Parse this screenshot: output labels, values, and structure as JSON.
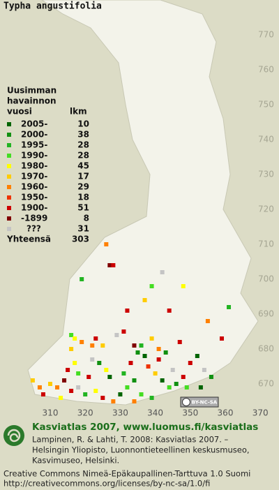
{
  "map": {
    "title": "Typha angustifolia",
    "northing_ticks": [
      670,
      680,
      690,
      700,
      710,
      720,
      730,
      740,
      750,
      760,
      770
    ],
    "easting_ticks": [
      310,
      320,
      330,
      340,
      350,
      360,
      370
    ],
    "legend": {
      "heading": [
        "Uusimman",
        "havainnon",
        "vuosi"
      ],
      "count_heading": "lkm",
      "rows": [
        {
          "label": "2005-",
          "count": 10,
          "color": "#006400"
        },
        {
          "label": "2000-",
          "count": 38,
          "color": "#119011"
        },
        {
          "label": "1995-",
          "count": 28,
          "color": "#22b422"
        },
        {
          "label": "1990-",
          "count": 28,
          "color": "#44dd22"
        },
        {
          "label": "1980-",
          "count": 45,
          "color": "#ffff00"
        },
        {
          "label": "1970-",
          "count": 17,
          "color": "#ffcc00"
        },
        {
          "label": "1960-",
          "count": 29,
          "color": "#ff8000"
        },
        {
          "label": "1950-",
          "count": 18,
          "color": "#ee3300"
        },
        {
          "label": "1900-",
          "count": 51,
          "color": "#cc0000"
        },
        {
          "label": "-1899",
          "count": 8,
          "color": "#800000"
        },
        {
          "label": "???",
          "count": 31,
          "color": "#c4c4c4"
        }
      ],
      "total_label": "Yhteensä",
      "total": 303
    },
    "dots": [
      {
        "e": 326,
        "n": 710,
        "c": 6
      },
      {
        "e": 327,
        "n": 704,
        "c": 9
      },
      {
        "e": 328,
        "n": 704,
        "c": 8
      },
      {
        "e": 319,
        "n": 700,
        "c": 2
      },
      {
        "e": 339,
        "n": 698,
        "c": 3
      },
      {
        "e": 348,
        "n": 698,
        "c": 4
      },
      {
        "e": 342,
        "n": 702,
        "c": 10
      },
      {
        "e": 332,
        "n": 691,
        "c": 8
      },
      {
        "e": 337,
        "n": 694,
        "c": 5
      },
      {
        "e": 344,
        "n": 691,
        "c": 8
      },
      {
        "e": 361,
        "n": 692,
        "c": 2
      },
      {
        "e": 355,
        "n": 688,
        "c": 6
      },
      {
        "e": 359,
        "n": 683,
        "c": 8
      },
      {
        "e": 347,
        "n": 682,
        "c": 8
      },
      {
        "e": 341,
        "n": 680,
        "c": 6
      },
      {
        "e": 316,
        "n": 684,
        "c": 3
      },
      {
        "e": 317,
        "n": 683,
        "c": 4
      },
      {
        "e": 319,
        "n": 682,
        "c": 6
      },
      {
        "e": 316,
        "n": 680,
        "c": 5
      },
      {
        "e": 317,
        "n": 676,
        "c": 4
      },
      {
        "e": 315,
        "n": 674,
        "c": 8
      },
      {
        "e": 318,
        "n": 673,
        "c": 3
      },
      {
        "e": 322,
        "n": 681,
        "c": 6
      },
      {
        "e": 323,
        "n": 683,
        "c": 8
      },
      {
        "e": 325,
        "n": 681,
        "c": 5
      },
      {
        "e": 322,
        "n": 677,
        "c": 10
      },
      {
        "e": 324,
        "n": 676,
        "c": 1
      },
      {
        "e": 326,
        "n": 674,
        "c": 4
      },
      {
        "e": 327,
        "n": 672,
        "c": 0
      },
      {
        "e": 321,
        "n": 672,
        "c": 8
      },
      {
        "e": 314,
        "n": 671,
        "c": 9
      },
      {
        "e": 312,
        "n": 669,
        "c": 6
      },
      {
        "e": 310,
        "n": 670,
        "c": 5
      },
      {
        "e": 307,
        "n": 669,
        "c": 6
      },
      {
        "e": 305,
        "n": 671,
        "c": 5
      },
      {
        "e": 308,
        "n": 667,
        "c": 8
      },
      {
        "e": 313,
        "n": 666,
        "c": 4
      },
      {
        "e": 316,
        "n": 668,
        "c": 8
      },
      {
        "e": 318,
        "n": 669,
        "c": 10
      },
      {
        "e": 320,
        "n": 667,
        "c": 2
      },
      {
        "e": 323,
        "n": 668,
        "c": 4
      },
      {
        "e": 325,
        "n": 666,
        "c": 8
      },
      {
        "e": 328,
        "n": 665,
        "c": 6
      },
      {
        "e": 330,
        "n": 667,
        "c": 0
      },
      {
        "e": 332,
        "n": 669,
        "c": 3
      },
      {
        "e": 334,
        "n": 671,
        "c": 1
      },
      {
        "e": 331,
        "n": 673,
        "c": 2
      },
      {
        "e": 333,
        "n": 676,
        "c": 8
      },
      {
        "e": 335,
        "n": 679,
        "c": 1
      },
      {
        "e": 337,
        "n": 678,
        "c": 0
      },
      {
        "e": 336,
        "n": 681,
        "c": 2
      },
      {
        "e": 334,
        "n": 681,
        "c": 9
      },
      {
        "e": 338,
        "n": 675,
        "c": 7
      },
      {
        "e": 340,
        "n": 673,
        "c": 5
      },
      {
        "e": 342,
        "n": 671,
        "c": 0
      },
      {
        "e": 344,
        "n": 669,
        "c": 3
      },
      {
        "e": 346,
        "n": 670,
        "c": 1
      },
      {
        "e": 348,
        "n": 672,
        "c": 8
      },
      {
        "e": 349,
        "n": 669,
        "c": 3
      },
      {
        "e": 345,
        "n": 674,
        "c": 10
      },
      {
        "e": 341,
        "n": 677,
        "c": 8
      },
      {
        "e": 343,
        "n": 679,
        "c": 1
      },
      {
        "e": 339,
        "n": 683,
        "c": 5
      },
      {
        "e": 331,
        "n": 685,
        "c": 8
      },
      {
        "e": 329,
        "n": 684,
        "c": 10
      },
      {
        "e": 350,
        "n": 676,
        "c": 8
      },
      {
        "e": 352,
        "n": 678,
        "c": 0
      },
      {
        "e": 354,
        "n": 674,
        "c": 10
      },
      {
        "e": 356,
        "n": 672,
        "c": 1
      },
      {
        "e": 353,
        "n": 669,
        "c": 0
      },
      {
        "e": 336,
        "n": 667,
        "c": 3
      },
      {
        "e": 339,
        "n": 666,
        "c": 2
      },
      {
        "e": 334,
        "n": 665,
        "c": 6
      }
    ],
    "license_badge": "BY-NC-SA"
  },
  "footer": {
    "heading": "Kasviatlas 2007, www.luomus.fi/kasviatlas",
    "citation": [
      "Lampinen, R. & Lahti, T. 2008: Kasviatlas 2007. –",
      "Helsingin Yliopisto, Luonnontieteellinen keskusmuseo,",
      "Kasvimuseo, Helsinki."
    ],
    "license": [
      "Creative Commons Nimeä-Epäkaupallinen-Tarttuva 1.0 Suomi",
      "http://creativecommons.org/licenses/by-nc-sa/1.0/fi"
    ]
  }
}
